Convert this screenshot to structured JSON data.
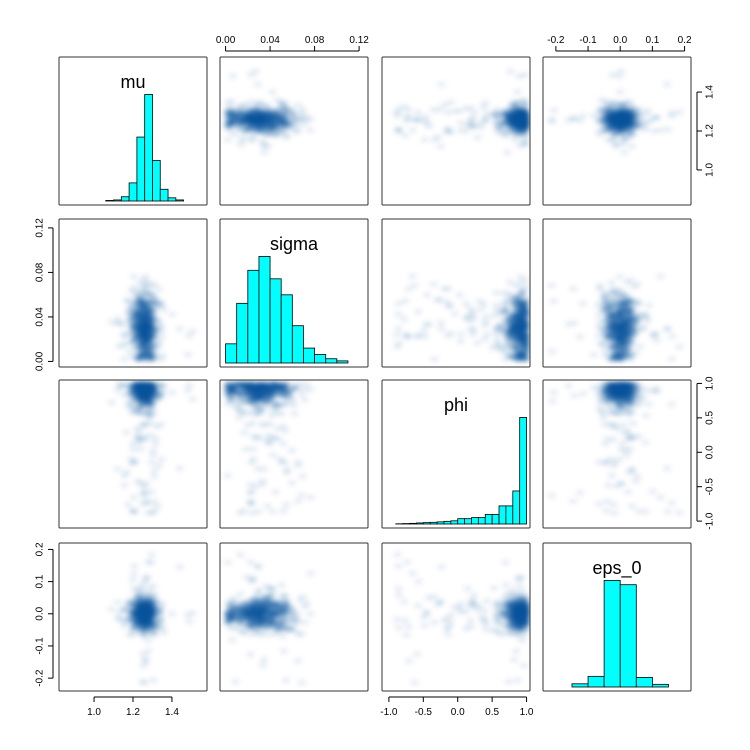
{
  "chart_data": {
    "type": "pairs",
    "variables": [
      "mu",
      "sigma",
      "phi",
      "eps_0"
    ],
    "axes": {
      "mu": {
        "range": [
          0.82,
          1.58
        ],
        "ticks": [
          1.0,
          1.2,
          1.4
        ],
        "tick_labels": [
          "1.0",
          "1.2",
          "1.4"
        ]
      },
      "sigma": {
        "range": [
          -0.005,
          0.128
        ],
        "ticks": [
          0.0,
          0.04,
          0.08,
          0.12
        ],
        "tick_labels": [
          "0.00",
          "0.04",
          "0.08",
          "0.12"
        ]
      },
      "phi": {
        "range": [
          -1.1,
          1.05
        ],
        "ticks": [
          -1.0,
          -0.5,
          0.0,
          0.5,
          1.0
        ],
        "tick_labels": [
          "-1.0",
          "-0.5",
          "0.0",
          "0.5",
          "1.0"
        ]
      },
      "eps_0": {
        "range": [
          -0.24,
          0.22
        ],
        "ticks": [
          -0.2,
          -0.1,
          0.0,
          0.1,
          0.2
        ],
        "tick_labels": [
          "-0.2",
          "-0.1",
          "0.0",
          "0.1",
          "0.2"
        ]
      }
    },
    "histograms": {
      "mu": {
        "bin_edges": [
          1.06,
          1.1,
          1.14,
          1.18,
          1.22,
          1.26,
          1.3,
          1.34,
          1.38,
          1.42,
          1.46
        ],
        "rel_heights": [
          0.005,
          0.01,
          0.04,
          0.17,
          0.6,
          1.0,
          0.38,
          0.11,
          0.03,
          0.01
        ]
      },
      "sigma": {
        "bin_edges": [
          0.0,
          0.01,
          0.02,
          0.03,
          0.04,
          0.05,
          0.06,
          0.07,
          0.08,
          0.09,
          0.1,
          0.11
        ],
        "rel_heights": [
          0.18,
          0.56,
          0.87,
          1.0,
          0.79,
          0.64,
          0.35,
          0.14,
          0.08,
          0.04,
          0.02
        ]
      },
      "phi": {
        "bin_edges": [
          -0.9,
          -0.8,
          -0.7,
          -0.6,
          -0.5,
          -0.4,
          -0.3,
          -0.2,
          -0.1,
          0.0,
          0.1,
          0.2,
          0.3,
          0.4,
          0.5,
          0.6,
          0.7,
          0.8,
          0.9,
          1.0
        ],
        "rel_heights": [
          0.002,
          0.004,
          0.006,
          0.01,
          0.013,
          0.016,
          0.02,
          0.025,
          0.03,
          0.05,
          0.05,
          0.06,
          0.06,
          0.09,
          0.09,
          0.17,
          0.17,
          0.31,
          1.0
        ]
      },
      "eps_0": {
        "bin_edges": [
          -0.15,
          -0.1,
          -0.05,
          0.0,
          0.05,
          0.1,
          0.15
        ],
        "rel_heights": [
          0.03,
          0.1,
          1.0,
          0.96,
          0.09,
          0.025
        ]
      }
    },
    "scatter_fits": {
      "mu_vs_sigma": {
        "note": "independent",
        "center": [
          1.26,
          0.035
        ]
      },
      "mu_vs_phi": {
        "note": "funnel",
        "center": [
          1.26,
          0.92
        ]
      },
      "mu_vs_eps_0": {
        "note": "cross",
        "center": [
          1.26,
          0.0
        ]
      },
      "sigma_vs_phi": {
        "note": "positive",
        "center": [
          0.035,
          0.92
        ]
      },
      "sigma_vs_eps_0": {
        "note": "fan",
        "center": [
          0.035,
          0.0
        ]
      },
      "phi_vs_eps_0": {
        "note": "fan",
        "center": [
          0.92,
          0.0
        ]
      }
    },
    "grid": false,
    "legend": "none",
    "colors": {
      "hist_fill": "#00ffff",
      "hist_stroke": "#000000",
      "density": "#08519c",
      "frame": "#333333"
    }
  }
}
